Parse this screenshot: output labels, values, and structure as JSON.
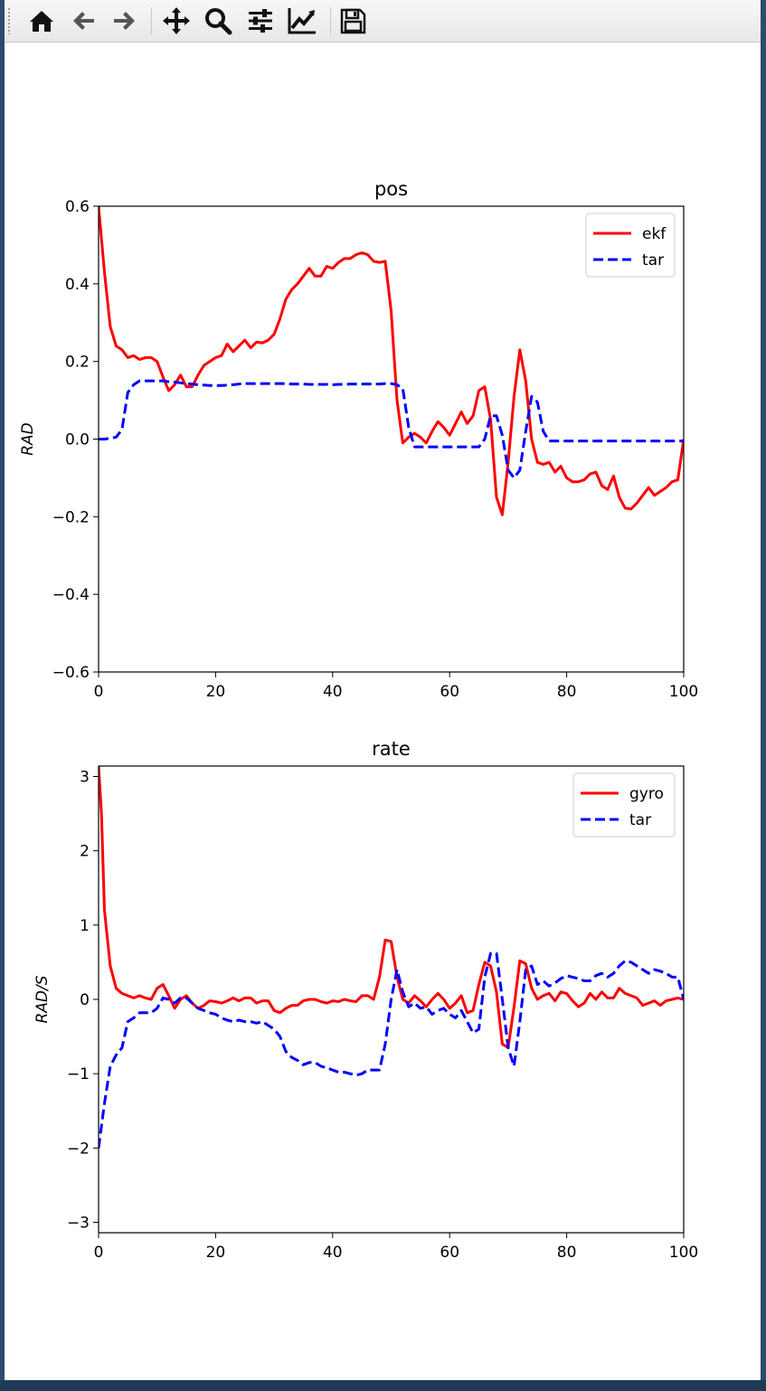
{
  "toolbar": {
    "items": [
      {
        "icon": "home-icon"
      },
      {
        "icon": "back-arrow-icon"
      },
      {
        "icon": "forward-arrow-icon"
      },
      {
        "icon": "pan-move-icon"
      },
      {
        "icon": "zoom-magnifier-icon"
      },
      {
        "icon": "configure-subplots-icon"
      },
      {
        "icon": "edit-axis-lines-icon"
      },
      {
        "icon": "save-floppy-icon"
      }
    ]
  },
  "chart_data": [
    {
      "type": "line",
      "title": "pos",
      "xlabel": "",
      "ylabel": "RAD",
      "xlim": [
        0,
        100
      ],
      "ylim": [
        -0.6,
        0.6
      ],
      "xticks": [
        "0",
        "20",
        "40",
        "60",
        "80",
        "100"
      ],
      "yticks": [
        "0.6",
        "0.4",
        "0.2",
        "0.0",
        "−0.2",
        "−0.4",
        "−0.6"
      ],
      "grid": false,
      "legend": "top-right",
      "series": [
        {
          "name": "ekf",
          "color": "#ff0000",
          "style": "solid",
          "x": [
            0,
            1,
            2,
            3,
            4,
            5,
            6,
            7,
            8,
            9,
            10,
            11,
            12,
            13,
            14,
            15,
            16,
            17,
            18,
            19,
            20,
            21,
            22,
            23,
            24,
            25,
            26,
            27,
            28,
            29,
            30,
            31,
            32,
            33,
            34,
            35,
            36,
            37,
            38,
            39,
            40,
            41,
            42,
            43,
            44,
            45,
            46,
            47,
            48,
            49,
            50,
            51,
            52,
            53,
            54,
            55,
            56,
            57,
            58,
            59,
            60,
            61,
            62,
            63,
            64,
            65,
            66,
            67,
            68,
            69,
            70,
            71,
            72,
            73,
            74,
            75,
            76,
            77,
            78,
            79,
            80,
            81,
            82,
            83,
            84,
            85,
            86,
            87,
            88,
            89,
            90,
            91,
            92,
            93,
            94,
            95,
            96,
            97,
            98,
            99,
            100
          ],
          "y": [
            0.6,
            0.43,
            0.29,
            0.24,
            0.23,
            0.21,
            0.215,
            0.205,
            0.21,
            0.21,
            0.2,
            0.16,
            0.125,
            0.14,
            0.165,
            0.135,
            0.135,
            0.165,
            0.19,
            0.2,
            0.21,
            0.215,
            0.245,
            0.225,
            0.24,
            0.255,
            0.235,
            0.25,
            0.248,
            0.255,
            0.27,
            0.31,
            0.36,
            0.385,
            0.4,
            0.42,
            0.44,
            0.42,
            0.42,
            0.445,
            0.44,
            0.455,
            0.465,
            0.465,
            0.475,
            0.48,
            0.475,
            0.458,
            0.455,
            0.458,
            0.33,
            0.1,
            -0.01,
            0.005,
            0.015,
            0.005,
            -0.01,
            0.02,
            0.045,
            0.03,
            0.01,
            0.04,
            0.07,
            0.04,
            0.06,
            0.125,
            0.135,
            0.05,
            -0.15,
            -0.195,
            -0.06,
            0.11,
            0.23,
            0.15,
            0.0,
            -0.06,
            -0.065,
            -0.06,
            -0.085,
            -0.07,
            -0.1,
            -0.11,
            -0.11,
            -0.105,
            -0.09,
            -0.085,
            -0.12,
            -0.13,
            -0.095,
            -0.15,
            -0.178,
            -0.18,
            -0.165,
            -0.145,
            -0.125,
            -0.145,
            -0.135,
            -0.125,
            -0.11,
            -0.105,
            0.0
          ]
        },
        {
          "name": "tar",
          "color": "#0000ff",
          "style": "dashed",
          "x": [
            0,
            1,
            2,
            3,
            4,
            5,
            6,
            7,
            8,
            9,
            10,
            11,
            12,
            13,
            14,
            15,
            16,
            17,
            18,
            19,
            20,
            21,
            22,
            23,
            24,
            25,
            26,
            27,
            28,
            29,
            30,
            31,
            32,
            33,
            34,
            35,
            36,
            37,
            38,
            39,
            40,
            41,
            42,
            43,
            44,
            45,
            46,
            47,
            48,
            49,
            50,
            51,
            52,
            53,
            54,
            55,
            56,
            57,
            58,
            59,
            60,
            61,
            62,
            63,
            64,
            65,
            66,
            67,
            68,
            69,
            70,
            71,
            72,
            73,
            74,
            75,
            76,
            77,
            78,
            79,
            80,
            81,
            82,
            83,
            84,
            85,
            86,
            87,
            88,
            89,
            90,
            91,
            92,
            93,
            94,
            95,
            96,
            97,
            98,
            99,
            100
          ],
          "y": [
            0.0,
            0.0,
            0.002,
            0.005,
            0.025,
            0.12,
            0.14,
            0.15,
            0.15,
            0.15,
            0.15,
            0.15,
            0.148,
            0.147,
            0.145,
            0.143,
            0.142,
            0.14,
            0.139,
            0.138,
            0.138,
            0.138,
            0.139,
            0.14,
            0.142,
            0.143,
            0.143,
            0.143,
            0.143,
            0.143,
            0.143,
            0.143,
            0.143,
            0.142,
            0.142,
            0.142,
            0.141,
            0.141,
            0.141,
            0.141,
            0.14,
            0.141,
            0.141,
            0.142,
            0.142,
            0.142,
            0.142,
            0.142,
            0.142,
            0.143,
            0.143,
            0.14,
            0.13,
            0.03,
            -0.02,
            -0.02,
            -0.02,
            -0.02,
            -0.02,
            -0.02,
            -0.02,
            -0.02,
            -0.02,
            -0.02,
            -0.02,
            -0.02,
            0.0,
            0.06,
            0.06,
            0.01,
            -0.08,
            -0.1,
            -0.08,
            0.02,
            0.11,
            0.095,
            0.02,
            -0.005,
            -0.005,
            -0.005,
            -0.005,
            -0.005,
            -0.005,
            -0.005,
            -0.005,
            -0.005,
            -0.005,
            -0.005,
            -0.005,
            -0.005,
            -0.005,
            -0.005,
            -0.005,
            -0.005,
            -0.005,
            -0.005,
            -0.005,
            -0.005,
            -0.005,
            -0.005,
            -0.005
          ]
        }
      ]
    },
    {
      "type": "line",
      "title": "rate",
      "xlabel": "",
      "ylabel": "RAD/S",
      "xlim": [
        0,
        100
      ],
      "ylim": [
        -3.14,
        3.14
      ],
      "xticks": [
        "0",
        "20",
        "40",
        "60",
        "80",
        "100"
      ],
      "yticks": [
        "3",
        "2",
        "1",
        "0",
        "−1",
        "−2",
        "−3"
      ],
      "grid": false,
      "legend": "top-right",
      "series": [
        {
          "name": "gyro",
          "color": "#ff0000",
          "style": "solid",
          "x": [
            0,
            0.5,
            1,
            2,
            3,
            4,
            5,
            6,
            7,
            8,
            9,
            10,
            11,
            12,
            13,
            14,
            15,
            16,
            17,
            18,
            19,
            20,
            21,
            22,
            23,
            24,
            25,
            26,
            27,
            28,
            29,
            30,
            31,
            32,
            33,
            34,
            35,
            36,
            37,
            38,
            39,
            40,
            41,
            42,
            43,
            44,
            45,
            46,
            47,
            48,
            49,
            50,
            51,
            52,
            53,
            54,
            55,
            56,
            57,
            58,
            59,
            60,
            61,
            62,
            63,
            64,
            65,
            66,
            67,
            68,
            69,
            70,
            71,
            72,
            73,
            74,
            75,
            76,
            77,
            78,
            79,
            80,
            81,
            82,
            83,
            84,
            85,
            86,
            87,
            88,
            89,
            90,
            91,
            92,
            93,
            94,
            95,
            96,
            97,
            98,
            99,
            100
          ],
          "y": [
            3.14,
            2.5,
            1.2,
            0.45,
            0.15,
            0.08,
            0.05,
            0.02,
            0.05,
            0.02,
            0.0,
            0.15,
            0.2,
            0.05,
            -0.12,
            0.0,
            0.05,
            -0.05,
            -0.12,
            -0.08,
            -0.02,
            -0.03,
            -0.05,
            -0.02,
            0.02,
            -0.02,
            0.02,
            0.02,
            -0.05,
            -0.02,
            -0.02,
            -0.15,
            -0.18,
            -0.12,
            -0.08,
            -0.08,
            -0.02,
            0.0,
            0.0,
            -0.03,
            -0.05,
            -0.02,
            -0.03,
            0.0,
            -0.02,
            -0.03,
            0.05,
            0.05,
            0.0,
            0.3,
            0.8,
            0.78,
            0.3,
            0.0,
            -0.05,
            0.05,
            -0.02,
            -0.1,
            0.0,
            0.08,
            0.0,
            -0.12,
            -0.05,
            0.05,
            -0.18,
            -0.15,
            0.2,
            0.5,
            0.45,
            0.1,
            -0.6,
            -0.65,
            -0.1,
            0.52,
            0.48,
            0.15,
            0.0,
            0.05,
            0.08,
            -0.02,
            0.1,
            0.08,
            -0.02,
            -0.1,
            -0.05,
            0.08,
            0.0,
            0.1,
            0.02,
            0.02,
            0.15,
            0.08,
            0.05,
            0.02,
            -0.08,
            -0.05,
            -0.02,
            -0.08,
            -0.02,
            0.0,
            0.02,
            0.0
          ]
        },
        {
          "name": "tar",
          "color": "#0000ff",
          "style": "dashed",
          "x": [
            0,
            1,
            2,
            3,
            4,
            5,
            6,
            7,
            8,
            9,
            10,
            11,
            12,
            13,
            14,
            15,
            16,
            17,
            18,
            19,
            20,
            21,
            22,
            23,
            24,
            25,
            26,
            27,
            28,
            29,
            30,
            31,
            32,
            33,
            34,
            35,
            36,
            37,
            38,
            39,
            40,
            41,
            42,
            43,
            44,
            45,
            46,
            47,
            48,
            49,
            50,
            51,
            52,
            53,
            54,
            55,
            56,
            57,
            58,
            59,
            60,
            61,
            62,
            63,
            64,
            65,
            66,
            67,
            68,
            69,
            70,
            71,
            72,
            73,
            74,
            75,
            76,
            77,
            78,
            79,
            80,
            81,
            82,
            83,
            84,
            85,
            86,
            87,
            88,
            89,
            90,
            91,
            92,
            93,
            94,
            95,
            96,
            97,
            98,
            99,
            100
          ],
          "y": [
            -2.0,
            -1.4,
            -0.9,
            -0.75,
            -0.65,
            -0.3,
            -0.25,
            -0.18,
            -0.18,
            -0.18,
            -0.12,
            0.02,
            0.0,
            -0.05,
            0.02,
            0.02,
            -0.05,
            -0.12,
            -0.15,
            -0.18,
            -0.2,
            -0.25,
            -0.28,
            -0.3,
            -0.28,
            -0.3,
            -0.3,
            -0.32,
            -0.3,
            -0.35,
            -0.4,
            -0.5,
            -0.7,
            -0.78,
            -0.82,
            -0.88,
            -0.85,
            -0.85,
            -0.9,
            -0.92,
            -0.95,
            -0.98,
            -0.98,
            -1.0,
            -1.02,
            -1.0,
            -0.95,
            -0.95,
            -0.95,
            -0.6,
            0.0,
            0.4,
            0.1,
            -0.1,
            -0.05,
            -0.12,
            -0.1,
            -0.2,
            -0.15,
            -0.12,
            -0.2,
            -0.25,
            -0.15,
            -0.3,
            -0.45,
            -0.4,
            0.3,
            0.62,
            0.62,
            0.0,
            -0.65,
            -0.9,
            -0.3,
            0.4,
            0.45,
            0.2,
            0.25,
            0.18,
            0.22,
            0.28,
            0.32,
            0.3,
            0.28,
            0.25,
            0.25,
            0.32,
            0.35,
            0.3,
            0.35,
            0.45,
            0.52,
            0.5,
            0.45,
            0.4,
            0.35,
            0.4,
            0.38,
            0.35,
            0.3,
            0.3,
            0.0
          ]
        }
      ]
    }
  ]
}
